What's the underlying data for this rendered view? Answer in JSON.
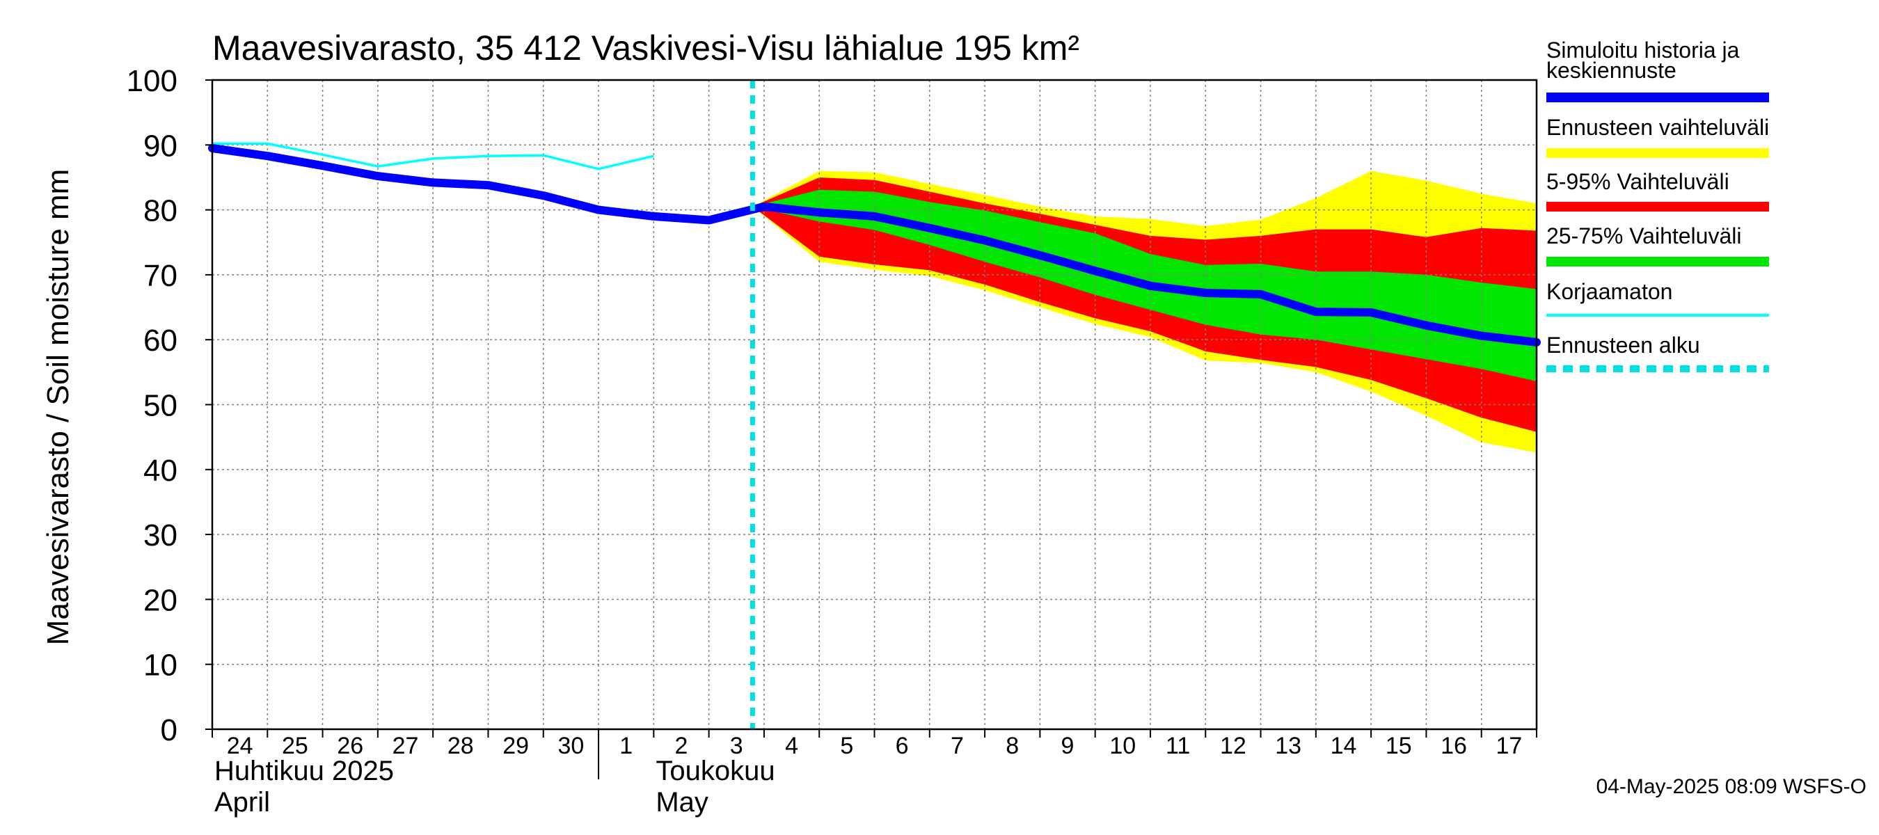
{
  "chart_data": {
    "type": "area",
    "title": "Maavesivarasto, 35 412 Vaskivesi-Visu lähialue 195 km²",
    "ylabel": "Maavesivarasto / Soil moisture   mm",
    "ylim": [
      0,
      100
    ],
    "yticks": [
      "0",
      "10",
      "20",
      "30",
      "40",
      "50",
      "60",
      "70",
      "80",
      "90",
      "100"
    ],
    "x_start": "2025-04-24",
    "x_end": "2025-05-18",
    "day_ticks": [
      "24",
      "25",
      "26",
      "27",
      "28",
      "29",
      "30",
      "1",
      "2",
      "3",
      "4",
      "5",
      "6",
      "7",
      "8",
      "9",
      "10",
      "11",
      "12",
      "13",
      "14",
      "15",
      "16",
      "17"
    ],
    "month_labels": [
      {
        "line1": "Huhtikuu  2025",
        "line2": "April",
        "date": "2025-04-24"
      },
      {
        "line1": "Toukokuu",
        "line2": "May",
        "date": "2025-05-02"
      }
    ],
    "month_divider_date": "2025-05-01",
    "forecast_start_date": "2025-05-03 19:00",
    "grid": true,
    "legend_position": "right",
    "footer": "04-May-2025 08:09 WSFS-O",
    "colors": {
      "simulated": "#0000ff",
      "range_full": "#ffff00",
      "range_5_95": "#ff0000",
      "range_25_75": "#00e600",
      "uncorrected": "#00ffff",
      "forecast_start": "#00e0e0",
      "grid": "#808080"
    },
    "legend": [
      {
        "key": "simulated",
        "lines": [
          "Simuloitu historia ja",
          "keskiennuste"
        ],
        "style": "thick"
      },
      {
        "key": "range_full",
        "lines": [
          "Ennusteen vaihteluväli"
        ],
        "style": "band"
      },
      {
        "key": "range_5_95",
        "lines": [
          "5-95% Vaihteluväli"
        ],
        "style": "band"
      },
      {
        "key": "range_25_75",
        "lines": [
          "25-75% Vaihteluväli"
        ],
        "style": "band"
      },
      {
        "key": "uncorrected",
        "lines": [
          "Korjaamaton"
        ],
        "style": "thin"
      },
      {
        "key": "forecast_start",
        "lines": [
          "Ennusteen alku"
        ],
        "style": "dashed"
      }
    ],
    "series": {
      "simulated": {
        "dates": [
          "2025-04-24",
          "2025-04-25",
          "2025-04-26",
          "2025-04-27",
          "2025-04-28",
          "2025-04-29",
          "2025-04-30",
          "2025-05-01",
          "2025-05-02",
          "2025-05-03",
          "2025-05-04",
          "2025-05-05",
          "2025-05-06",
          "2025-05-07",
          "2025-05-08",
          "2025-05-09",
          "2025-05-10",
          "2025-05-11",
          "2025-05-12",
          "2025-05-13",
          "2025-05-14",
          "2025-05-15",
          "2025-05-16",
          "2025-05-17",
          "2025-05-18"
        ],
        "values": [
          89.5,
          88.3,
          86.8,
          85.2,
          84.2,
          83.8,
          82.2,
          80.0,
          79.0,
          78.4,
          80.5,
          79.6,
          79.0,
          77.2,
          75.3,
          73.0,
          70.6,
          68.3,
          67.2,
          67.0,
          64.3,
          64.2,
          62.2,
          60.6,
          59.6
        ]
      },
      "uncorrected": {
        "dates": [
          "2025-04-24",
          "2025-04-25",
          "2025-04-26",
          "2025-04-27",
          "2025-04-28",
          "2025-04-29",
          "2025-04-30",
          "2025-05-01",
          "2025-05-02"
        ],
        "values": [
          90.2,
          90.2,
          88.5,
          86.7,
          87.9,
          88.3,
          88.4,
          86.3,
          88.3
        ]
      },
      "bands": {
        "dates": [
          "2025-05-03 19:00",
          "2025-05-05",
          "2025-05-06",
          "2025-05-07",
          "2025-05-08",
          "2025-05-09",
          "2025-05-10",
          "2025-05-11",
          "2025-05-12",
          "2025-05-13",
          "2025-05-14",
          "2025-05-15",
          "2025-05-16",
          "2025-05-17",
          "2025-05-18"
        ],
        "range_full_upper": [
          80.5,
          86.0,
          85.8,
          84.0,
          82.3,
          80.5,
          79.0,
          78.6,
          77.5,
          78.5,
          81.8,
          86.0,
          84.5,
          82.5,
          81.0
        ],
        "range_5_95_upper": [
          80.5,
          85.0,
          84.6,
          82.8,
          81.0,
          79.4,
          77.7,
          76.0,
          75.4,
          76.0,
          77.0,
          77.0,
          75.8,
          77.2,
          76.8
        ],
        "range_25_75_upper": [
          80.5,
          83.1,
          82.8,
          81.2,
          79.9,
          78.1,
          76.4,
          73.2,
          71.5,
          71.7,
          70.5,
          70.5,
          70.0,
          68.8,
          67.8
        ],
        "range_25_75_lower": [
          80.5,
          78.2,
          76.9,
          74.6,
          72.0,
          69.6,
          66.9,
          64.6,
          62.3,
          60.8,
          60.0,
          58.5,
          57.0,
          55.5,
          53.6
        ],
        "range_5_95_lower": [
          80.5,
          75.2,
          75.0,
          73.2,
          71.7,
          70.0,
          67.7,
          65.6,
          63.0,
          61.8,
          60.8,
          59.0,
          57.1,
          54.8,
          52.8
        ],
        "range_5_95_lower_tail": [
          80.5,
          72.8,
          71.6,
          70.7,
          68.5,
          65.8,
          63.3,
          61.3,
          58.2,
          56.9,
          55.8,
          53.8,
          51.0,
          48.0,
          45.8
        ],
        "range_full_lower": [
          80.5,
          72.0,
          70.8,
          69.8,
          67.6,
          65.0,
          62.4,
          60.4,
          56.8,
          56.4,
          55.0,
          52.0,
          48.3,
          44.2,
          42.6
        ]
      }
    }
  }
}
